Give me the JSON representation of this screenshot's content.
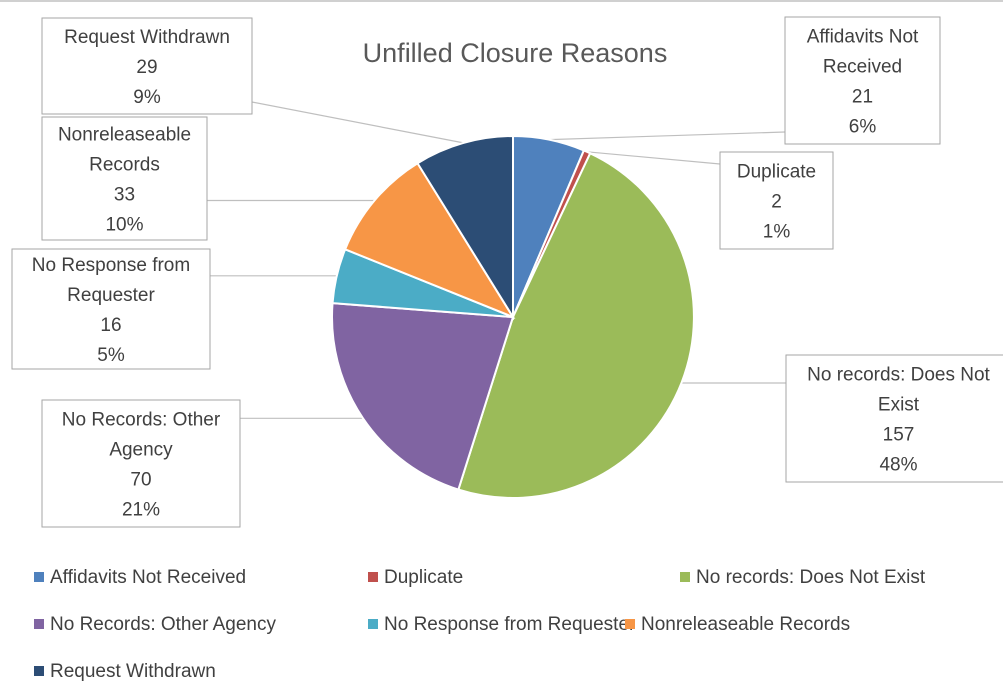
{
  "chart_data": {
    "type": "pie",
    "title": "Unfilled Closure Reasons",
    "slices": [
      {
        "label": "Affidavits Not Received",
        "value": 21,
        "percent": "6%",
        "color": "#4f81bd"
      },
      {
        "label": "Duplicate",
        "value": 2,
        "percent": "1%",
        "color": "#c0504d"
      },
      {
        "label": "No records: Does Not Exist",
        "value": 157,
        "percent": "48%",
        "color": "#9bbb59"
      },
      {
        "label": "No Records: Other Agency",
        "value": 70,
        "percent": "21%",
        "color": "#8064a2"
      },
      {
        "label": "No Response from Requester",
        "value": 16,
        "percent": "5%",
        "color": "#4bacc6"
      },
      {
        "label": "Nonreleaseable Records",
        "value": 33,
        "percent": "10%",
        "color": "#f79646"
      },
      {
        "label": "Request Withdrawn",
        "value": 29,
        "percent": "9%",
        "color": "#2c4d75"
      }
    ],
    "data_labels": [
      {
        "lines": [
          "Affidavits Not",
          "Received",
          "21",
          "6%"
        ]
      },
      {
        "lines": [
          "Duplicate",
          "2",
          "1%"
        ]
      },
      {
        "lines": [
          "No records: Does Not",
          "Exist",
          "157",
          "48%"
        ]
      },
      {
        "lines": [
          "No Records: Other",
          "Agency",
          "70",
          "21%"
        ]
      },
      {
        "lines": [
          "No Response from",
          "Requester",
          "16",
          "5%"
        ]
      },
      {
        "lines": [
          "Nonreleaseable",
          "Records",
          "33",
          "10%"
        ]
      },
      {
        "lines": [
          "Request Withdrawn",
          "29",
          "9%"
        ]
      }
    ],
    "legend_position": "bottom"
  }
}
